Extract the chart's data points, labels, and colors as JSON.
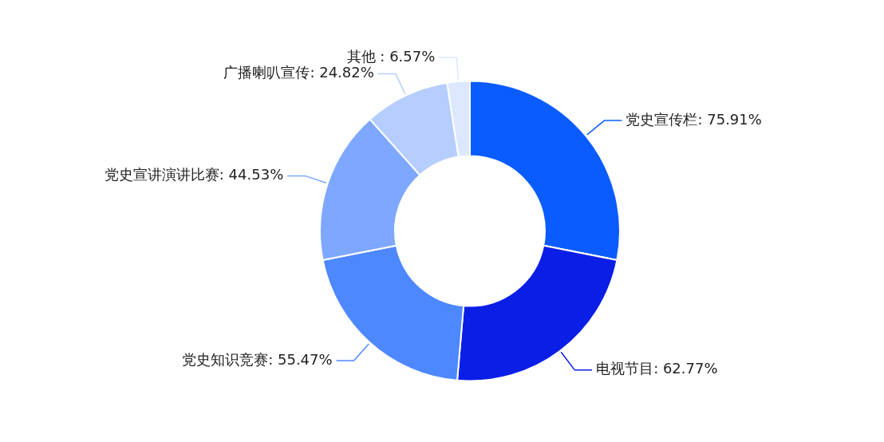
{
  "chart_data": {
    "type": "donut",
    "categories": [
      "党史宣传栏",
      "电视节目",
      "党史知识竞赛",
      "党史宣讲演讲比赛",
      "广播喇叭宣传",
      "其他 "
    ],
    "values": [
      75.91,
      62.77,
      55.47,
      44.53,
      24.82,
      6.57
    ],
    "value_labels": [
      "75.91%",
      "62.77%",
      "55.47%",
      "44.53%",
      "24.82%",
      "6.57%"
    ],
    "colors": [
      "#0a5cff",
      "#0a1ee6",
      "#4d88ff",
      "#7ea8ff",
      "#b5cdff",
      "#dce8ff"
    ],
    "legend": false
  }
}
